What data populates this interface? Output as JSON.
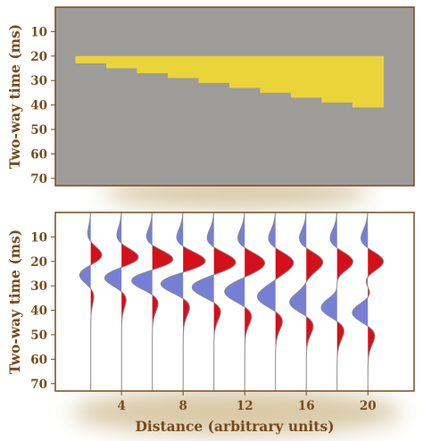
{
  "chart_data": [
    {
      "type": "area",
      "panel": "model",
      "ylabel": "Two-way time (ms)",
      "ylim": [
        0,
        73
      ],
      "yticks": [
        10,
        20,
        30,
        40,
        50,
        60,
        70
      ],
      "y_inverted": true,
      "background_color": "#9e9c99",
      "layer_color": "#ebd33a",
      "layer_top": 20,
      "x_extent": [
        1,
        21
      ],
      "layer_steps": [
        {
          "x0": 1,
          "x1": 3,
          "bottom": 23
        },
        {
          "x0": 3,
          "x1": 5,
          "bottom": 25
        },
        {
          "x0": 5,
          "x1": 7,
          "bottom": 27
        },
        {
          "x0": 7,
          "x1": 9,
          "bottom": 29
        },
        {
          "x0": 9,
          "x1": 11,
          "bottom": 31
        },
        {
          "x0": 11,
          "x1": 13,
          "bottom": 33
        },
        {
          "x0": 13,
          "x1": 15,
          "bottom": 35
        },
        {
          "x0": 15,
          "x1": 17,
          "bottom": 37
        },
        {
          "x0": 17,
          "x1": 19,
          "bottom": 39
        },
        {
          "x0": 19,
          "x1": 21,
          "bottom": 41
        }
      ]
    },
    {
      "type": "line",
      "panel": "seismic",
      "xlabel": "Distance (arbitrary units)",
      "ylabel": "Two-way time (ms)",
      "xticks": [
        4,
        8,
        12,
        16,
        20
      ],
      "yticks": [
        10,
        20,
        30,
        40,
        50,
        60,
        70
      ],
      "xlim": [
        -0.3,
        23
      ],
      "ylim": [
        0,
        73
      ],
      "y_inverted": true,
      "positive_color": "#d4101a",
      "negative_color": "#7580d4",
      "wavelet_period_ms": 22,
      "traces": [
        {
          "x": 2,
          "top": 20,
          "bottom": 23,
          "amplitude": 1.0
        },
        {
          "x": 4,
          "top": 20,
          "bottom": 25,
          "amplitude": 1.0
        },
        {
          "x": 6,
          "top": 20,
          "bottom": 27,
          "amplitude": 1.0
        },
        {
          "x": 8,
          "top": 20,
          "bottom": 29,
          "amplitude": 1.0
        },
        {
          "x": 10,
          "top": 20,
          "bottom": 31,
          "amplitude": 1.0
        },
        {
          "x": 12,
          "top": 20,
          "bottom": 33,
          "amplitude": 1.0
        },
        {
          "x": 14,
          "top": 20,
          "bottom": 35,
          "amplitude": 1.0
        },
        {
          "x": 16,
          "top": 20,
          "bottom": 37,
          "amplitude": 1.0
        },
        {
          "x": 18,
          "top": 20,
          "bottom": 39,
          "amplitude": 1.0
        },
        {
          "x": 20,
          "top": 20,
          "bottom": 41,
          "amplitude": 1.0
        }
      ]
    }
  ],
  "colors": {
    "text": "#7a4a1c",
    "frame": "#7a4a1c",
    "shadow": "#d9c9a7"
  }
}
